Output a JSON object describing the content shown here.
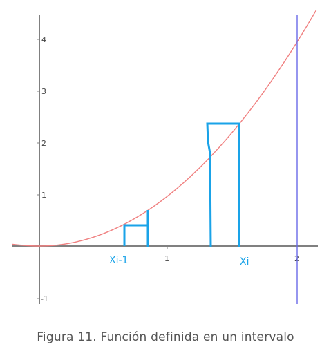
{
  "figure": {
    "x_tick_labels": [
      "1",
      "2"
    ],
    "y_tick_labels": [
      "-1",
      "1",
      "2",
      "3",
      "4"
    ],
    "label_left": "Xi-1",
    "label_right": "Xi"
  },
  "colors": {
    "curve": "#f08080",
    "axes": "#808080",
    "rectangles": "#1aa3e8",
    "vertical_line": "#6a6ae8"
  },
  "caption": "Figura 11. Función definida en un intervalo"
}
